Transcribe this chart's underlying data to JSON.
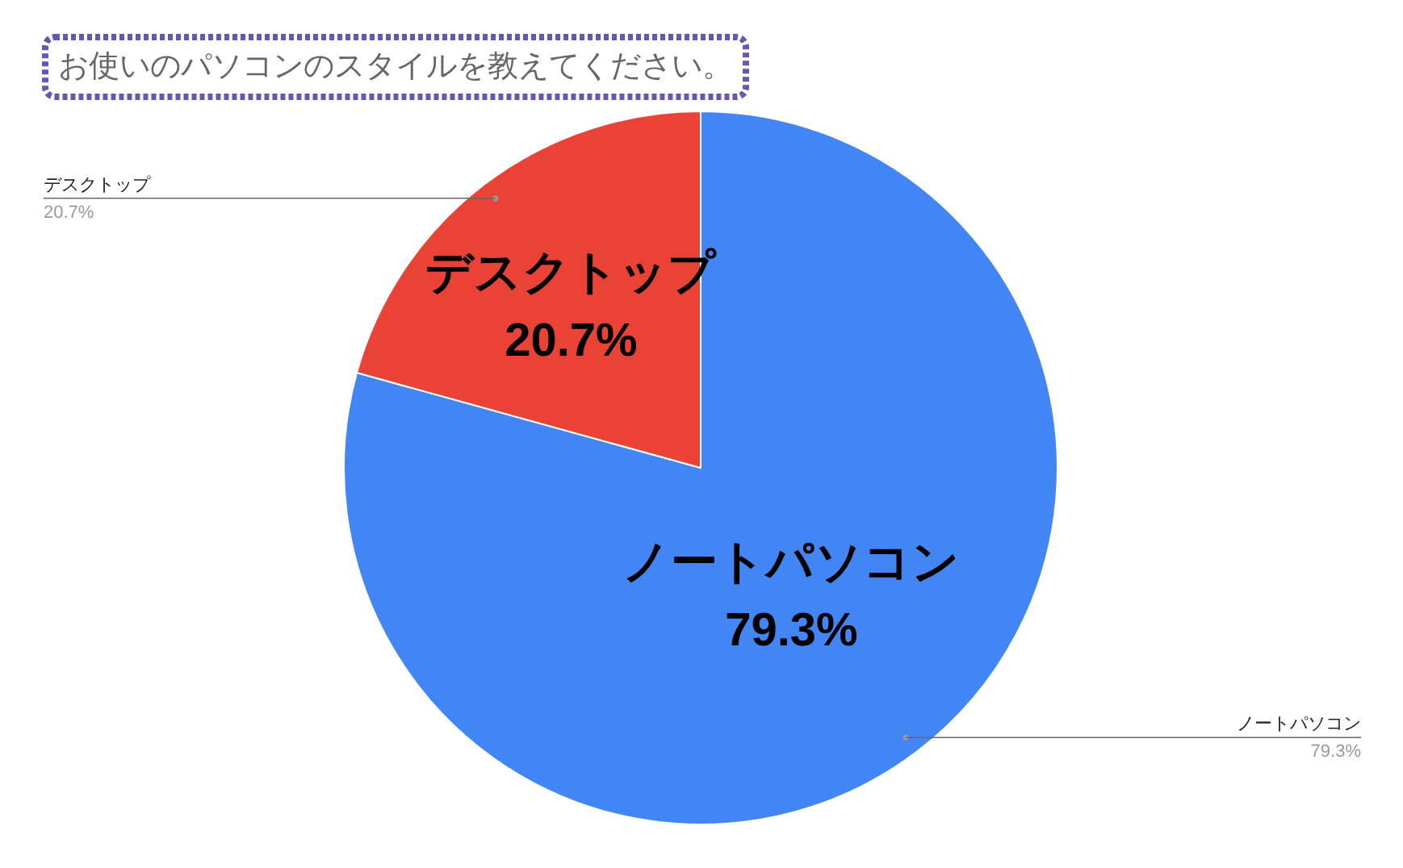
{
  "chart_data": {
    "type": "pie",
    "title": "お使いのパソコンのスタイルを教えてください。",
    "categories": [
      "ノートパソコン",
      "デスクトップ"
    ],
    "values": [
      79.3,
      20.7
    ],
    "colors": [
      "#4285f4",
      "#ea4335"
    ],
    "value_labels": [
      "79.3%",
      "20.7%"
    ]
  }
}
